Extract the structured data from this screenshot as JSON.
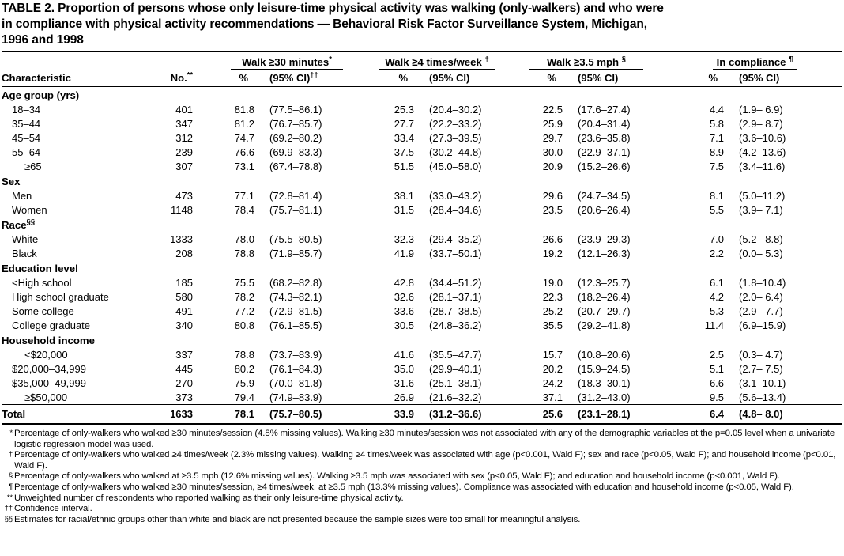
{
  "title_lines": [
    "TABLE 2. Proportion of persons whose only leisure-time physical activity was walking (only-walkers) and who were",
    "in compliance with physical activity recommendations — Behavioral Risk Factor Surveillance System, Michigan,",
    "1996 and 1998"
  ],
  "table": {
    "stub_header": "Characteristic",
    "n_header": "No.",
    "n_header_marker": "**",
    "groups": [
      {
        "name": "Walk ≥30 minutes",
        "marker": "*",
        "pct_label": "%",
        "ci_label": "(95% CI)",
        "ci_marker": "††"
      },
      {
        "name": "Walk ≥4 times/week",
        "marker": "†",
        "pct_label": "%",
        "ci_label": "(95% CI)",
        "ci_marker": ""
      },
      {
        "name": "Walk ≥3.5 mph",
        "marker": "§",
        "pct_label": "%",
        "ci_label": "(95% CI)",
        "ci_marker": ""
      },
      {
        "name": "In compliance",
        "marker": "¶",
        "pct_label": "%",
        "ci_label": "(95% CI)",
        "ci_marker": ""
      }
    ],
    "sections": [
      {
        "header": "Age group (yrs)",
        "marker": "",
        "rows": [
          {
            "label": "18–34",
            "indent": 1,
            "n": "401",
            "values": [
              "81.8",
              "(77.5–86.1)",
              "25.3",
              "(20.4–30.2)",
              "22.5",
              "(17.6–27.4)",
              "4.4",
              "(1.9– 6.9)"
            ]
          },
          {
            "label": "35–44",
            "indent": 1,
            "n": "347",
            "values": [
              "81.2",
              "(76.7–85.7)",
              "27.7",
              "(22.2–33.2)",
              "25.9",
              "(20.4–31.4)",
              "5.8",
              "(2.9– 8.7)"
            ]
          },
          {
            "label": "45–54",
            "indent": 1,
            "n": "312",
            "values": [
              "74.7",
              "(69.2–80.2)",
              "33.4",
              "(27.3–39.5)",
              "29.7",
              "(23.6–35.8)",
              "7.1",
              "(3.6–10.6)"
            ]
          },
          {
            "label": "55–64",
            "indent": 1,
            "n": "239",
            "values": [
              "76.6",
              "(69.9–83.3)",
              "37.5",
              "(30.2–44.8)",
              "30.0",
              "(22.9–37.1)",
              "8.9",
              "(4.2–13.6)"
            ]
          },
          {
            "label": "≥65",
            "indent": 2,
            "n": "307",
            "values": [
              "73.1",
              "(67.4–78.8)",
              "51.5",
              "(45.0–58.0)",
              "20.9",
              "(15.2–26.6)",
              "7.5",
              "(3.4–11.6)"
            ]
          }
        ]
      },
      {
        "header": "Sex",
        "marker": "",
        "rows": [
          {
            "label": "Men",
            "indent": 1,
            "n": "473",
            "values": [
              "77.1",
              "(72.8–81.4)",
              "38.1",
              "(33.0–43.2)",
              "29.6",
              "(24.7–34.5)",
              "8.1",
              "(5.0–11.2)"
            ]
          },
          {
            "label": "Women",
            "indent": 1,
            "n": "1148",
            "values": [
              "78.4",
              "(75.7–81.1)",
              "31.5",
              "(28.4–34.6)",
              "23.5",
              "(20.6–26.4)",
              "5.5",
              "(3.9– 7.1)"
            ]
          }
        ]
      },
      {
        "header": "Race",
        "marker": "§§",
        "rows": [
          {
            "label": "White",
            "indent": 1,
            "n": "1333",
            "values": [
              "78.0",
              "(75.5–80.5)",
              "32.3",
              "(29.4–35.2)",
              "26.6",
              "(23.9–29.3)",
              "7.0",
              "(5.2– 8.8)"
            ]
          },
          {
            "label": "Black",
            "indent": 1,
            "n": "208",
            "values": [
              "78.8",
              "(71.9–85.7)",
              "41.9",
              "(33.7–50.1)",
              "19.2",
              "(12.1–26.3)",
              "2.2",
              "(0.0– 5.3)"
            ]
          }
        ]
      },
      {
        "header": "Education level",
        "marker": "",
        "rows": [
          {
            "label": "<High school",
            "indent": 1,
            "n": "185",
            "values": [
              "75.5",
              "(68.2–82.8)",
              "42.8",
              "(34.4–51.2)",
              "19.0",
              "(12.3–25.7)",
              "6.1",
              "(1.8–10.4)"
            ]
          },
          {
            "label": "High school graduate",
            "indent": 1,
            "n": "580",
            "values": [
              "78.2",
              "(74.3–82.1)",
              "32.6",
              "(28.1–37.1)",
              "22.3",
              "(18.2–26.4)",
              "4.2",
              "(2.0– 6.4)"
            ]
          },
          {
            "label": "Some college",
            "indent": 1,
            "n": "491",
            "values": [
              "77.2",
              "(72.9–81.5)",
              "33.6",
              "(28.7–38.5)",
              "25.2",
              "(20.7–29.7)",
              "5.3",
              "(2.9– 7.7)"
            ]
          },
          {
            "label": "College graduate",
            "indent": 1,
            "n": "340",
            "values": [
              "80.8",
              "(76.1–85.5)",
              "30.5",
              "(24.8–36.2)",
              "35.5",
              "(29.2–41.8)",
              "11.4",
              "(6.9–15.9)"
            ]
          }
        ]
      },
      {
        "header": "Household income",
        "marker": "",
        "rows": [
          {
            "label": "<$20,000",
            "indent": 2,
            "n": "337",
            "values": [
              "78.8",
              "(73.7–83.9)",
              "41.6",
              "(35.5–47.7)",
              "15.7",
              "(10.8–20.6)",
              "2.5",
              "(0.3– 4.7)"
            ]
          },
          {
            "label": "$20,000–34,999",
            "indent": 1,
            "n": "445",
            "values": [
              "80.2",
              "(76.1–84.3)",
              "35.0",
              "(29.9–40.1)",
              "20.2",
              "(15.9–24.5)",
              "5.1",
              "(2.7– 7.5)"
            ]
          },
          {
            "label": "$35,000–49,999",
            "indent": 1,
            "n": "270",
            "values": [
              "75.9",
              "(70.0–81.8)",
              "31.6",
              "(25.1–38.1)",
              "24.2",
              "(18.3–30.1)",
              "6.6",
              "(3.1–10.1)"
            ]
          },
          {
            "label": "≥$50,000",
            "indent": 2,
            "n": "373",
            "values": [
              "79.4",
              "(74.9–83.9)",
              "26.9",
              "(21.6–32.2)",
              "37.1",
              "(31.2–43.0)",
              "9.5",
              "(5.6–13.4)"
            ]
          }
        ]
      }
    ],
    "total": {
      "label": "Total",
      "n": "1633",
      "values": [
        "78.1",
        "(75.7–80.5)",
        "33.9",
        "(31.2–36.6)",
        "25.6",
        "(23.1–28.1)",
        "6.4",
        "(4.8– 8.0)"
      ]
    }
  },
  "footnotes": [
    {
      "marker": "*",
      "text": "Percentage of only-walkers who walked ≥30 minutes/session (4.8% missing values). Walking ≥30 minutes/session was not associated with any of the demographic variables at the p=0.05 level when a univariate logistic regression model was used."
    },
    {
      "marker": "†",
      "text": "Percentage of only-walkers who walked ≥4 times/week (2.3% missing values). Walking ≥4 times/week was associated with age (p<0.001, Wald F); sex and race (p<0.05, Wald F); and household income (p<0.01, Wald F)."
    },
    {
      "marker": "§",
      "text": "Percentage of only-walkers who walked at ≥3.5 mph (12.6% missing values). Walking ≥3.5 mph was associated with sex (p<0.05, Wald F); and education and household income (p<0.001, Wald F)."
    },
    {
      "marker": "¶",
      "text": "Percentage of only-walkers who walked ≥30 minutes/session, ≥4 times/week, at ≥3.5 mph (13.3% missing values). Compliance was associated with education and household income (p<0.05, Wald F)."
    },
    {
      "marker": "**",
      "text": "Unweighted number of respondents who reported walking as their only leisure-time physical activity."
    },
    {
      "marker": "††",
      "text": "Confidence interval."
    },
    {
      "marker": "§§",
      "text": "Estimates for racial/ethnic groups other than white and black are not presented because the sample sizes were too small for meaningful analysis."
    }
  ]
}
